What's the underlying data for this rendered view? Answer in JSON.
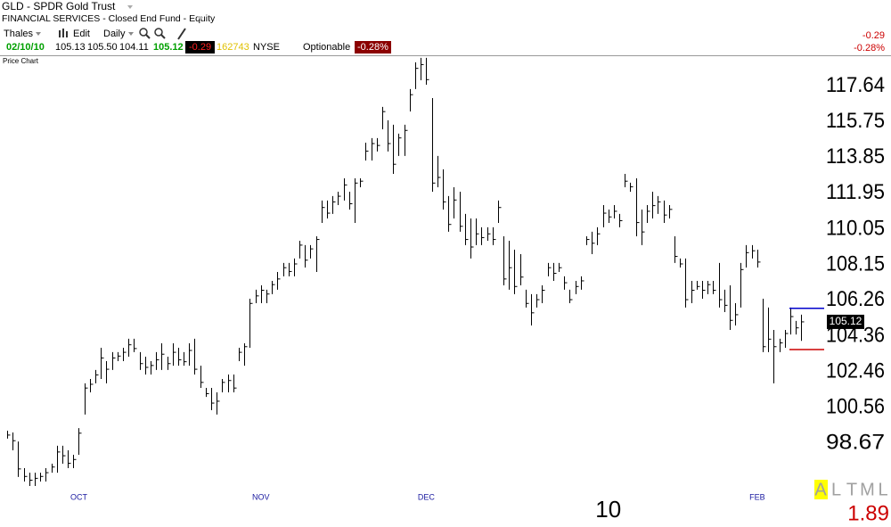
{
  "header": {
    "symbol_title": "GLD - SPDR Gold Trust",
    "classification": "FINANCIAL SERVICES - Closed End Fund - Equity",
    "toolbar": {
      "account": "Thales",
      "edit": "Edit",
      "period": "Daily"
    },
    "quote": {
      "date": "02/10/10",
      "open": "105.13",
      "high": "105.50",
      "low": "104.11",
      "last": "105.12",
      "change": "-0.29",
      "volume": "162743",
      "exchange": "NYSE",
      "optionable": "Optionable",
      "change_pct": "-0.28%"
    },
    "right_change": "-0.29",
    "right_change_pct": "-0.28%"
  },
  "panel_label": "Price Chart",
  "chart_data": {
    "type": "hlc",
    "color": "#000000",
    "categories": [
      null,
      null,
      null,
      null,
      null,
      null,
      null,
      null,
      null,
      null,
      null,
      null,
      null,
      "OCT",
      null,
      null,
      null,
      null,
      null,
      null,
      null,
      null,
      null,
      null,
      null,
      null,
      null,
      null,
      null,
      null,
      null,
      null,
      null,
      null,
      null,
      null,
      null,
      null,
      null,
      null,
      null,
      null,
      null,
      null,
      null,
      null,
      "NOV",
      null,
      null,
      null,
      null,
      null,
      null,
      null,
      null,
      null,
      null,
      null,
      null,
      null,
      null,
      null,
      null,
      null,
      null,
      null,
      null,
      null,
      null,
      null,
      null,
      null,
      null,
      null,
      null,
      null,
      "DEC",
      null,
      null,
      null,
      null,
      null,
      null,
      null,
      null,
      null,
      null,
      null,
      null,
      null,
      null,
      null,
      null,
      null,
      null,
      null,
      null,
      null,
      null,
      null,
      null,
      null,
      null,
      null,
      null,
      null,
      null,
      null,
      null,
      "10",
      null,
      null,
      null,
      null,
      null,
      null,
      null,
      null,
      null,
      null,
      null,
      null,
      null,
      null,
      null,
      null,
      null,
      null,
      null,
      null,
      null,
      null,
      null,
      null,
      null,
      null,
      "FEB",
      null,
      null,
      null,
      null,
      null,
      null,
      null,
      null
    ],
    "high": [
      99.33,
      99.24,
      98.76,
      97.34,
      97.1,
      97.1,
      97.1,
      97.34,
      97.58,
      98.53,
      98.53,
      98.29,
      98.05,
      99.47,
      101.85,
      102.08,
      102.56,
      103.74,
      103.03,
      103.51,
      103.51,
      103.74,
      104.22,
      104.22,
      103.51,
      103.27,
      103.03,
      103.51,
      103.98,
      103.27,
      103.98,
      103.74,
      103.51,
      103.98,
      104.22,
      102.79,
      101.61,
      101.61,
      101.37,
      102.08,
      102.32,
      102.32,
      103.74,
      103.98,
      106.35,
      106.83,
      107.06,
      106.83,
      107.3,
      107.77,
      108.25,
      108.25,
      108.49,
      109.43,
      109.2,
      109.2,
      109.67,
      111.57,
      111.57,
      111.81,
      112.04,
      112.75,
      112.04,
      112.75,
      112.75,
      114.65,
      114.89,
      114.89,
      116.55,
      115.84,
      115.6,
      115.13,
      115.6,
      117.5,
      118.92,
      119.16,
      119.16,
      117.02,
      113.94,
      113.23,
      111.81,
      112.28,
      112.04,
      110.86,
      110.62,
      110.62,
      110.15,
      110.15,
      110.15,
      111.57,
      109.67,
      109.43,
      108.96,
      108.72,
      106.83,
      106.59,
      106.59,
      107.06,
      108.25,
      108.25,
      108.25,
      107.54,
      106.83,
      107.3,
      107.54,
      109.67,
      109.91,
      110.15,
      111.33,
      111.09,
      111.33,
      110.86,
      112.99,
      112.52,
      112.75,
      111.09,
      111.33,
      112.04,
      111.81,
      111.57,
      111.33,
      109.67,
      108.49,
      108.49,
      107.3,
      107.3,
      107.3,
      107.3,
      107.3,
      108.25,
      106.83,
      107.06,
      106.11,
      108.25,
      109.2,
      109.2,
      108.96,
      106.35,
      105.88,
      104.69,
      104.22,
      104.69,
      105.88,
      105.17,
      105.5
    ],
    "low": [
      98.91,
      98.29,
      96.87,
      96.63,
      96.39,
      96.39,
      96.63,
      96.63,
      97.1,
      97.1,
      97.58,
      97.34,
      97.34,
      98.05,
      100.19,
      101.37,
      101.85,
      102.08,
      101.85,
      102.56,
      103.03,
      103.03,
      103.27,
      103.51,
      102.56,
      102.32,
      102.32,
      102.56,
      102.56,
      102.56,
      102.79,
      102.79,
      102.79,
      102.79,
      102.32,
      101.61,
      101.13,
      100.42,
      100.19,
      101.37,
      101.37,
      101.37,
      103.03,
      102.79,
      103.74,
      106.11,
      106.11,
      106.11,
      106.59,
      106.83,
      107.54,
      107.54,
      107.54,
      108.49,
      108.01,
      108.49,
      107.77,
      110.38,
      110.62,
      110.86,
      111.33,
      111.57,
      111.09,
      110.38,
      112.28,
      113.7,
      113.7,
      114.18,
      115.36,
      114.18,
      112.99,
      113.94,
      113.94,
      116.31,
      117.5,
      117.97,
      117.73,
      112.04,
      112.28,
      111.09,
      109.91,
      110.62,
      109.91,
      109.2,
      108.49,
      109.2,
      109.2,
      109.43,
      109.2,
      110.38,
      107.06,
      106.83,
      106.59,
      107.06,
      105.88,
      104.93,
      105.88,
      106.11,
      107.54,
      107.3,
      107.77,
      106.83,
      106.11,
      106.59,
      106.83,
      109.2,
      108.72,
      109.2,
      110.15,
      110.38,
      110.62,
      110.15,
      112.28,
      112.04,
      109.67,
      109.2,
      110.38,
      110.62,
      110.86,
      110.38,
      110.62,
      108.25,
      108.01,
      105.88,
      106.11,
      106.83,
      106.35,
      106.59,
      106.59,
      105.88,
      105.64,
      104.69,
      104.93,
      105.88,
      108.01,
      108.49,
      108.01,
      103.51,
      103.51,
      101.85,
      103.51,
      103.74,
      104.45,
      104.45,
      104.11
    ],
    "close": [
      99.1,
      98.8,
      97.3,
      96.9,
      96.7,
      96.8,
      96.9,
      97.1,
      97.4,
      98.2,
      98.0,
      97.6,
      97.8,
      99.2,
      101.6,
      101.8,
      102.3,
      103.2,
      102.6,
      103.2,
      103.3,
      103.5,
      103.9,
      103.7,
      102.9,
      102.7,
      102.8,
      103.1,
      103.4,
      102.9,
      103.5,
      103.1,
      103.0,
      103.6,
      102.6,
      101.9,
      101.3,
      100.8,
      100.9,
      101.9,
      102.0,
      101.6,
      103.5,
      103.8,
      106.1,
      106.5,
      106.8,
      106.6,
      107.1,
      107.4,
      108.0,
      107.8,
      108.2,
      109.2,
      108.4,
      109.0,
      109.5,
      111.2,
      110.9,
      111.5,
      111.8,
      112.4,
      111.4,
      112.5,
      112.6,
      114.2,
      114.6,
      114.5,
      116.3,
      114.6,
      113.5,
      114.9,
      115.3,
      117.2,
      118.6,
      118.8,
      118.0,
      112.5,
      112.8,
      111.5,
      110.3,
      111.6,
      110.2,
      109.5,
      109.1,
      109.8,
      109.6,
      109.8,
      109.5,
      111.2,
      107.4,
      108.0,
      107.0,
      107.5,
      106.1,
      105.6,
      106.3,
      106.8,
      108.0,
      107.7,
      108.0,
      107.2,
      106.3,
      107.0,
      107.3,
      109.5,
      109.3,
      109.8,
      110.9,
      110.7,
      111.0,
      110.5,
      112.6,
      112.3,
      110.4,
      109.9,
      111.0,
      111.3,
      111.5,
      110.8,
      111.1,
      108.6,
      108.2,
      106.3,
      106.8,
      107.0,
      106.8,
      107.1,
      106.8,
      106.3,
      106.0,
      105.2,
      105.5,
      107.9,
      108.8,
      108.9,
      108.3,
      103.8,
      104.2,
      103.8,
      104.0,
      104.5,
      105.4,
      104.8,
      105.12
    ],
    "ylim": [
      96.25,
      119.2
    ],
    "yticks": [
      117.64,
      115.75,
      113.85,
      111.95,
      110.05,
      108.15,
      106.26,
      104.36,
      102.46,
      100.56,
      98.67
    ],
    "grid": false,
    "reference_lines": [
      {
        "value": 105.84,
        "color": "#0000cc"
      },
      {
        "value": 103.65,
        "color": "#cc0000"
      }
    ],
    "last_label_color": "#000000"
  },
  "footer": {
    "indicator_letters": [
      "A",
      "L",
      "T",
      "M",
      "L"
    ],
    "indicator_value": "1.89"
  }
}
